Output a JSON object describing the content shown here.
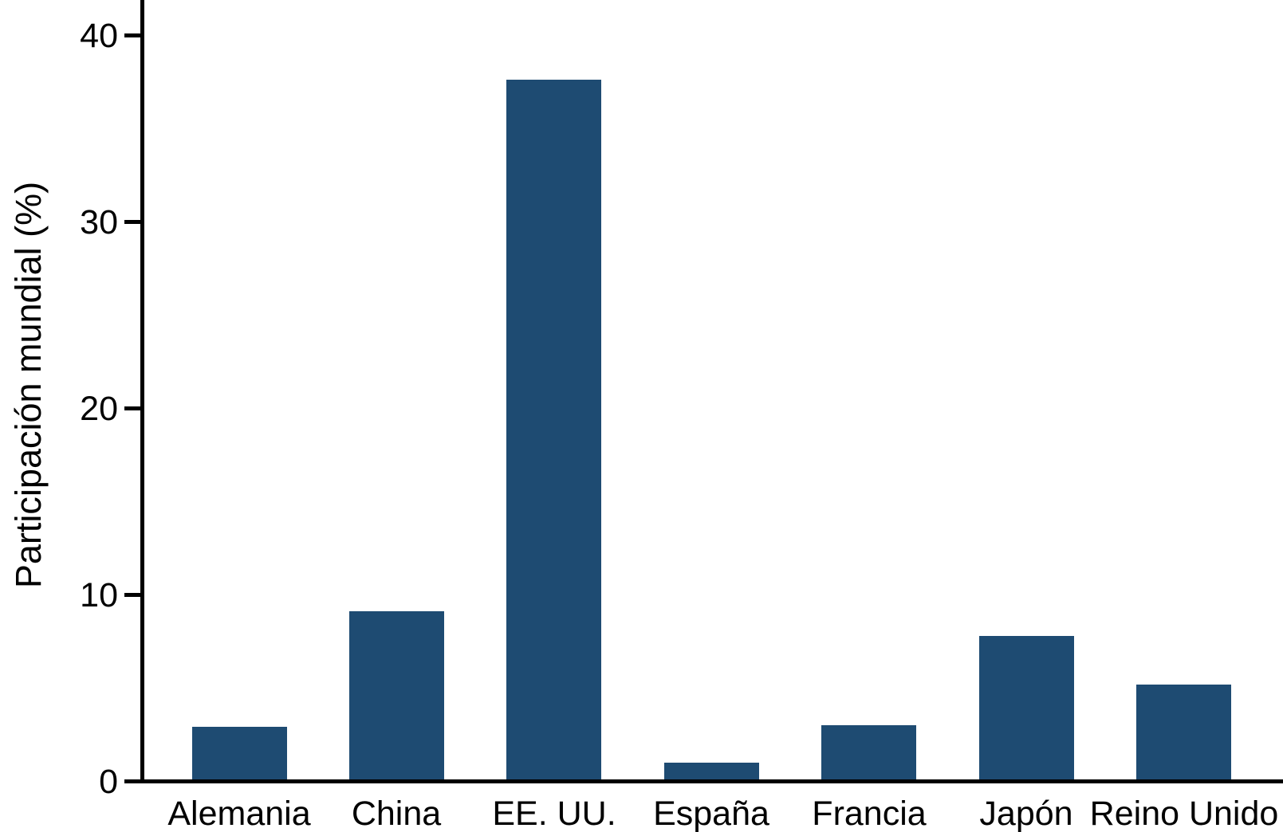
{
  "chart_data": {
    "type": "bar",
    "title": "",
    "xlabel": "",
    "ylabel": "Participación mundial (%)",
    "categories": [
      "Alemania",
      "China",
      "EE. UU.",
      "España",
      "Francia",
      "Japón",
      "Reino Unido"
    ],
    "values": [
      2.8,
      9.0,
      37.5,
      0.9,
      2.9,
      7.7,
      5.1
    ],
    "ylim": [
      0,
      40
    ],
    "yticks": [
      0,
      10,
      20,
      30,
      40
    ],
    "ytick_labels": [
      "0",
      "10",
      "20",
      "30",
      "40"
    ],
    "grid": false,
    "legend": null,
    "bar_color": "#1e4b72",
    "axis_color": "#000000",
    "text_color": "#000000",
    "background_color": "#ffffff"
  }
}
